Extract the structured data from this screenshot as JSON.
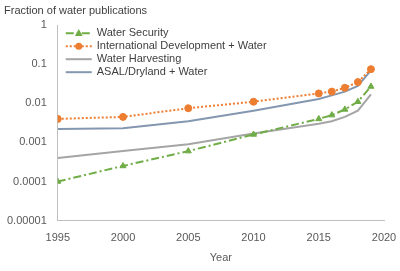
{
  "chart_data": {
    "type": "line",
    "y_label": "Fraction of water publications",
    "x_label": "Year",
    "log": "y",
    "grid": false,
    "legend": "upper left",
    "x": [
      1995,
      2000,
      2005,
      2010,
      2015,
      2016,
      2017,
      2018,
      2019
    ],
    "xlim": [
      1995,
      2020
    ],
    "xticks": [
      1995,
      2000,
      2005,
      2010,
      2015,
      2020
    ],
    "ylim": [
      1e-05,
      1
    ],
    "yticks": [
      1e-05,
      0.0001,
      0.001,
      0.01,
      0.1,
      1
    ],
    "series": [
      {
        "name": "Water Security",
        "color": "#70ad47",
        "marker": "triangle",
        "line_style": "dashdot",
        "values": [
          0.0001,
          0.00025,
          0.0006,
          0.0016,
          0.004,
          0.005,
          0.007,
          0.011,
          0.027
        ]
      },
      {
        "name": "International Development + Water",
        "color": "#ed7d31",
        "marker": "circle",
        "line_style": "dotted",
        "values": [
          0.004,
          0.0045,
          0.0075,
          0.011,
          0.018,
          0.02,
          0.025,
          0.035,
          0.075
        ]
      },
      {
        "name": "Water Harvesting",
        "color": "#a5a5a5",
        "marker": "none",
        "line_style": "solid",
        "values": [
          0.0004,
          0.0006,
          0.0009,
          0.0017,
          0.003,
          0.0035,
          0.0045,
          0.0065,
          0.017
        ]
      },
      {
        "name": "ASAL/Dryland + Water",
        "color": "#8497b0",
        "marker": "none",
        "line_style": "solid",
        "values": [
          0.0022,
          0.0023,
          0.0035,
          0.0065,
          0.013,
          0.016,
          0.02,
          0.028,
          0.07
        ]
      }
    ]
  }
}
